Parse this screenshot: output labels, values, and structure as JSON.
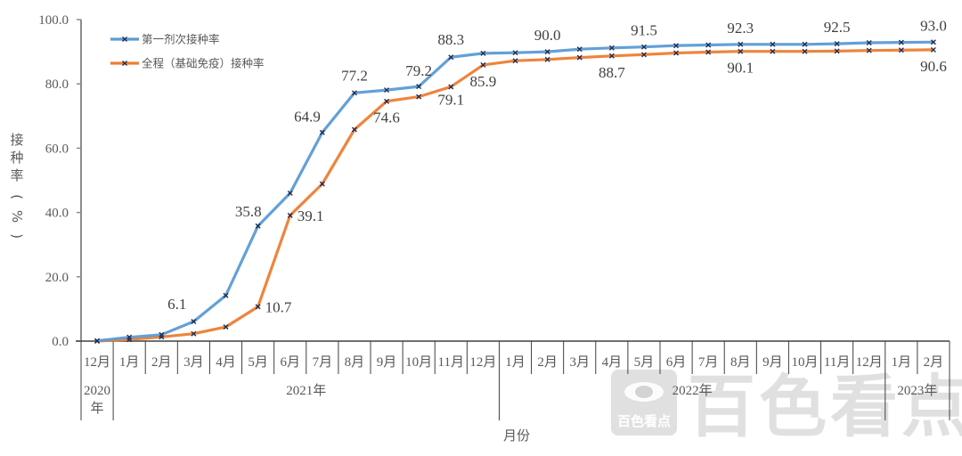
{
  "chart_data": {
    "type": "line",
    "title": "",
    "xlabel": "月份",
    "ylabel": "接种率（%）",
    "ylim": [
      0,
      100
    ],
    "yticks": [
      "0.0",
      "20.0",
      "40.0",
      "60.0",
      "80.0",
      "100.0"
    ],
    "grid": false,
    "legend_position": "top-left",
    "categories": [
      "12月",
      "1月",
      "2月",
      "3月",
      "4月",
      "5月",
      "6月",
      "7月",
      "8月",
      "9月",
      "10月",
      "11月",
      "12月",
      "1月",
      "2月",
      "3月",
      "4月",
      "5月",
      "6月",
      "7月",
      "8月",
      "9月",
      "10月",
      "11月",
      "12月",
      "1月",
      "2月"
    ],
    "year_groups": [
      {
        "label": "2020年",
        "start": 0,
        "end": 0
      },
      {
        "label": "2021年",
        "start": 1,
        "end": 12
      },
      {
        "label": "2022年",
        "start": 13,
        "end": 24
      },
      {
        "label": "2023年",
        "start": 25,
        "end": 26
      }
    ],
    "series": [
      {
        "name": "第一剂次接种率",
        "color": "#5b9bd5",
        "values": [
          0.1,
          1.2,
          2.0,
          6.1,
          14.2,
          35.8,
          46.0,
          64.9,
          77.2,
          78.1,
          79.2,
          88.3,
          89.5,
          89.7,
          90.0,
          90.8,
          91.2,
          91.5,
          91.9,
          92.1,
          92.3,
          92.3,
          92.3,
          92.5,
          92.8,
          92.9,
          93.0
        ],
        "labeled_points": {
          "3": "6.1",
          "5": "35.8",
          "7": "64.9",
          "8": "77.2",
          "10": "79.2",
          "11": "88.3",
          "14": "90.0",
          "17": "91.5",
          "20": "92.3",
          "23": "92.5",
          "26": "93.0"
        }
      },
      {
        "name": "全程（基础免疫）接种率",
        "color": "#ed7d31",
        "values": [
          0.0,
          0.5,
          1.3,
          2.3,
          4.4,
          10.7,
          39.1,
          48.9,
          65.8,
          74.6,
          76.0,
          79.1,
          85.9,
          87.2,
          87.6,
          88.2,
          88.7,
          89.1,
          89.6,
          89.9,
          90.1,
          90.1,
          90.1,
          90.2,
          90.4,
          90.5,
          90.6
        ],
        "labeled_points": {
          "5": "10.7",
          "6": "39.1",
          "9": "74.6",
          "11": "79.1",
          "12": "85.9",
          "16": "88.7",
          "20": "90.1",
          "26": "90.6"
        }
      }
    ]
  },
  "watermark": {
    "brand_text": "百色看点",
    "logo_caption": "百色看点"
  }
}
